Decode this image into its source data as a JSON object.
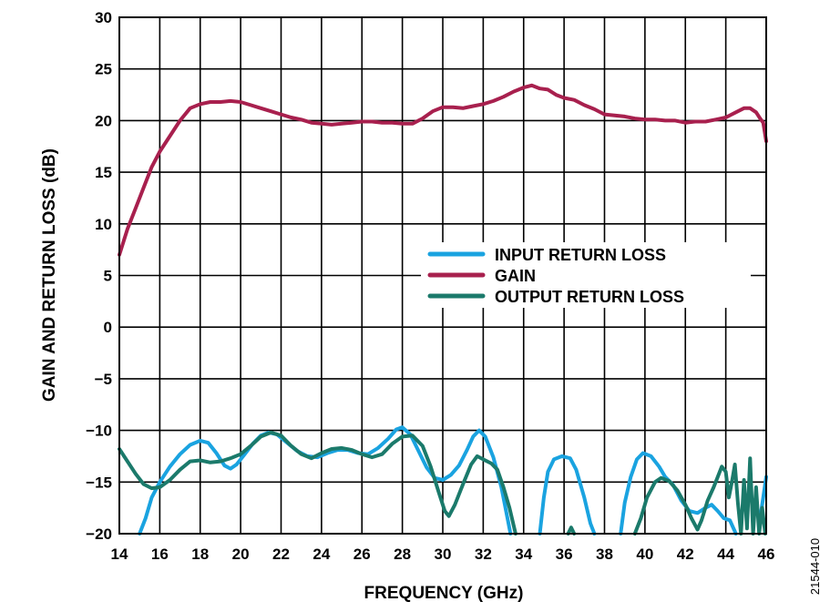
{
  "chart_data": {
    "type": "line",
    "xlabel": "FREQUENCY (GHz)",
    "ylabel": "GAIN AND RETURN LOSS (dB)",
    "xlim": [
      14,
      46
    ],
    "ylim": [
      -20,
      30
    ],
    "x_ticks": [
      "14",
      "16",
      "18",
      "20",
      "22",
      "24",
      "26",
      "28",
      "30",
      "32",
      "34",
      "36",
      "38",
      "40",
      "42",
      "44",
      "46"
    ],
    "y_ticks": [
      "30",
      "25",
      "20",
      "15",
      "10",
      "5",
      "0",
      "−5",
      "−10",
      "−15",
      "−20"
    ],
    "grid": true,
    "legend_position": "center-right",
    "figure_id": "21544-010",
    "series": [
      {
        "name": "INPUT RETURN LOSS",
        "color": "#1aa3e0",
        "segments": [
          [
            [
              15,
              -20
            ],
            [
              15.3,
              -18.5
            ],
            [
              15.6,
              -16.5
            ],
            [
              16,
              -15
            ],
            [
              16.5,
              -13.5
            ],
            [
              17,
              -12.3
            ],
            [
              17.5,
              -11.4
            ],
            [
              18,
              -11
            ],
            [
              18.4,
              -11.2
            ],
            [
              18.8,
              -12.2
            ],
            [
              19.2,
              -13.4
            ],
            [
              19.5,
              -13.7
            ],
            [
              19.8,
              -13.3
            ],
            [
              20.2,
              -12.3
            ],
            [
              20.6,
              -11.3
            ],
            [
              21,
              -10.5
            ],
            [
              21.4,
              -10.2
            ],
            [
              21.8,
              -10.4
            ],
            [
              22.3,
              -11.2
            ],
            [
              22.8,
              -12
            ],
            [
              23.3,
              -12.5
            ],
            [
              23.8,
              -12.6
            ],
            [
              24.3,
              -12.2
            ],
            [
              24.8,
              -11.9
            ],
            [
              25.3,
              -11.9
            ],
            [
              25.8,
              -12.2
            ],
            [
              26.3,
              -12.3
            ],
            [
              26.8,
              -11.7
            ],
            [
              27.3,
              -10.8
            ],
            [
              27.7,
              -9.9
            ],
            [
              28,
              -9.7
            ],
            [
              28.4,
              -10.4
            ],
            [
              28.8,
              -12
            ],
            [
              29.2,
              -13.6
            ],
            [
              29.6,
              -14.6
            ],
            [
              30,
              -14.8
            ],
            [
              30.4,
              -14.3
            ],
            [
              30.8,
              -13.4
            ],
            [
              31.2,
              -11.9
            ],
            [
              31.5,
              -10.6
            ],
            [
              31.8,
              -10
            ],
            [
              32.1,
              -10.6
            ],
            [
              32.5,
              -12.6
            ],
            [
              32.9,
              -15.5
            ],
            [
              33.2,
              -18.5
            ],
            [
              33.35,
              -20
            ]
          ],
          [
            [
              34.8,
              -20
            ],
            [
              35,
              -16.5
            ],
            [
              35.2,
              -14
            ],
            [
              35.5,
              -12.8
            ],
            [
              35.9,
              -12.5
            ],
            [
              36.3,
              -12.7
            ],
            [
              36.6,
              -13.8
            ],
            [
              37,
              -16.5
            ],
            [
              37.3,
              -19
            ],
            [
              37.5,
              -20
            ]
          ],
          [
            [
              38.8,
              -20
            ],
            [
              39,
              -17
            ],
            [
              39.3,
              -14.5
            ],
            [
              39.6,
              -12.8
            ],
            [
              39.9,
              -12.2
            ],
            [
              40.3,
              -12.5
            ],
            [
              40.7,
              -13.5
            ],
            [
              41,
              -14.5
            ],
            [
              41.4,
              -15.3
            ],
            [
              41.8,
              -16.8
            ],
            [
              42.2,
              -17.8
            ],
            [
              42.6,
              -18
            ],
            [
              43,
              -17.5
            ],
            [
              43.3,
              -17.2
            ],
            [
              43.6,
              -17.8
            ],
            [
              43.9,
              -18.5
            ],
            [
              44.2,
              -18.7
            ],
            [
              44.5,
              -20
            ]
          ],
          [
            [
              45.7,
              -18.5
            ],
            [
              45.85,
              -16.5
            ],
            [
              46,
              -14.5
            ]
          ]
        ]
      },
      {
        "name": "GAIN",
        "color": "#a8204e",
        "segments": [
          [
            [
              14,
              7
            ],
            [
              14.4,
              9.5
            ],
            [
              14.8,
              11.5
            ],
            [
              15.2,
              13.5
            ],
            [
              15.6,
              15.5
            ],
            [
              16,
              17
            ],
            [
              16.5,
              18.5
            ],
            [
              17,
              20
            ],
            [
              17.5,
              21.2
            ],
            [
              18,
              21.6
            ],
            [
              18.5,
              21.8
            ],
            [
              19,
              21.8
            ],
            [
              19.5,
              21.9
            ],
            [
              20,
              21.8
            ],
            [
              20.5,
              21.5
            ],
            [
              21,
              21.2
            ],
            [
              21.5,
              20.9
            ],
            [
              22,
              20.6
            ],
            [
              22.5,
              20.3
            ],
            [
              23,
              20.1
            ],
            [
              23.5,
              19.8
            ],
            [
              24,
              19.7
            ],
            [
              24.5,
              19.6
            ],
            [
              25,
              19.7
            ],
            [
              25.5,
              19.8
            ],
            [
              26,
              19.9
            ],
            [
              26.5,
              19.9
            ],
            [
              27,
              19.8
            ],
            [
              27.5,
              19.8
            ],
            [
              28,
              19.7
            ],
            [
              28.5,
              19.7
            ],
            [
              29,
              20.2
            ],
            [
              29.5,
              20.9
            ],
            [
              30,
              21.3
            ],
            [
              30.5,
              21.3
            ],
            [
              31,
              21.2
            ],
            [
              31.5,
              21.4
            ],
            [
              32,
              21.6
            ],
            [
              32.5,
              21.9
            ],
            [
              33,
              22.3
            ],
            [
              33.5,
              22.8
            ],
            [
              34,
              23.2
            ],
            [
              34.4,
              23.4
            ],
            [
              34.8,
              23.1
            ],
            [
              35.2,
              23
            ],
            [
              35.6,
              22.5
            ],
            [
              36,
              22.2
            ],
            [
              36.5,
              22
            ],
            [
              37,
              21.5
            ],
            [
              37.5,
              21.1
            ],
            [
              38,
              20.6
            ],
            [
              38.5,
              20.5
            ],
            [
              39,
              20.4
            ],
            [
              39.5,
              20.2
            ],
            [
              40,
              20.1
            ],
            [
              40.5,
              20.1
            ],
            [
              41,
              20
            ],
            [
              41.5,
              20
            ],
            [
              42,
              19.8
            ],
            [
              42.5,
              19.9
            ],
            [
              43,
              19.9
            ],
            [
              43.5,
              20.1
            ],
            [
              44,
              20.3
            ],
            [
              44.5,
              20.8
            ],
            [
              44.9,
              21.2
            ],
            [
              45.2,
              21.2
            ],
            [
              45.5,
              20.8
            ],
            [
              45.7,
              20.2
            ],
            [
              45.85,
              19.8
            ],
            [
              46,
              18
            ]
          ]
        ]
      },
      {
        "name": "OUTPUT RETURN LOSS",
        "color": "#1b7a6b",
        "segments": [
          [
            [
              14,
              -11.8
            ],
            [
              14.4,
              -13
            ],
            [
              14.8,
              -14.2
            ],
            [
              15.2,
              -15.2
            ],
            [
              15.6,
              -15.6
            ],
            [
              16,
              -15.5
            ],
            [
              16.5,
              -14.8
            ],
            [
              17,
              -13.8
            ],
            [
              17.5,
              -13
            ],
            [
              18,
              -12.9
            ],
            [
              18.5,
              -13.1
            ],
            [
              19,
              -13
            ],
            [
              19.5,
              -12.7
            ],
            [
              20,
              -12.3
            ],
            [
              20.5,
              -11.5
            ],
            [
              21,
              -10.6
            ],
            [
              21.5,
              -10.2
            ],
            [
              22,
              -10.5
            ],
            [
              22.5,
              -11.5
            ],
            [
              23,
              -12.3
            ],
            [
              23.5,
              -12.7
            ],
            [
              24,
              -12.2
            ],
            [
              24.5,
              -11.8
            ],
            [
              25,
              -11.7
            ],
            [
              25.5,
              -11.9
            ],
            [
              26,
              -12.3
            ],
            [
              26.5,
              -12.6
            ],
            [
              27,
              -12.3
            ],
            [
              27.5,
              -11.3
            ],
            [
              28,
              -10.6
            ],
            [
              28.5,
              -10.5
            ],
            [
              29,
              -11.5
            ],
            [
              29.4,
              -13.5
            ],
            [
              29.8,
              -16
            ],
            [
              30.1,
              -17.8
            ],
            [
              30.3,
              -18.3
            ],
            [
              30.6,
              -17.2
            ],
            [
              31,
              -15.2
            ],
            [
              31.4,
              -13.3
            ],
            [
              31.7,
              -12.5
            ],
            [
              32,
              -12.8
            ],
            [
              32.4,
              -13.2
            ],
            [
              32.7,
              -13.8
            ],
            [
              33,
              -15.5
            ],
            [
              33.3,
              -17.5
            ],
            [
              33.6,
              -20
            ]
          ],
          [
            [
              36.2,
              -20
            ],
            [
              36.35,
              -19.4
            ],
            [
              36.5,
              -20
            ]
          ],
          [
            [
              39.5,
              -20
            ],
            [
              39.8,
              -18.5
            ],
            [
              40.1,
              -16.5
            ],
            [
              40.5,
              -15
            ],
            [
              40.8,
              -14.6
            ],
            [
              41.2,
              -14.9
            ],
            [
              41.6,
              -15.8
            ],
            [
              42,
              -17.2
            ],
            [
              42.3,
              -18.5
            ],
            [
              42.6,
              -19.6
            ],
            [
              42.8,
              -18.7
            ],
            [
              43.1,
              -16.8
            ],
            [
              43.4,
              -15.5
            ],
            [
              43.6,
              -14.5
            ],
            [
              43.8,
              -13.5
            ],
            [
              44,
              -14
            ],
            [
              44.15,
              -16.5
            ],
            [
              44.3,
              -15
            ],
            [
              44.45,
              -13.3
            ],
            [
              44.6,
              -17
            ],
            [
              44.75,
              -20
            ],
            [
              44.9,
              -14.8
            ],
            [
              45.05,
              -19.5
            ],
            [
              45.2,
              -12.7
            ],
            [
              45.35,
              -20
            ],
            [
              45.5,
              -15.5
            ],
            [
              45.65,
              -20
            ],
            [
              45.8,
              -17.5
            ],
            [
              45.95,
              -20
            ]
          ]
        ]
      }
    ]
  }
}
